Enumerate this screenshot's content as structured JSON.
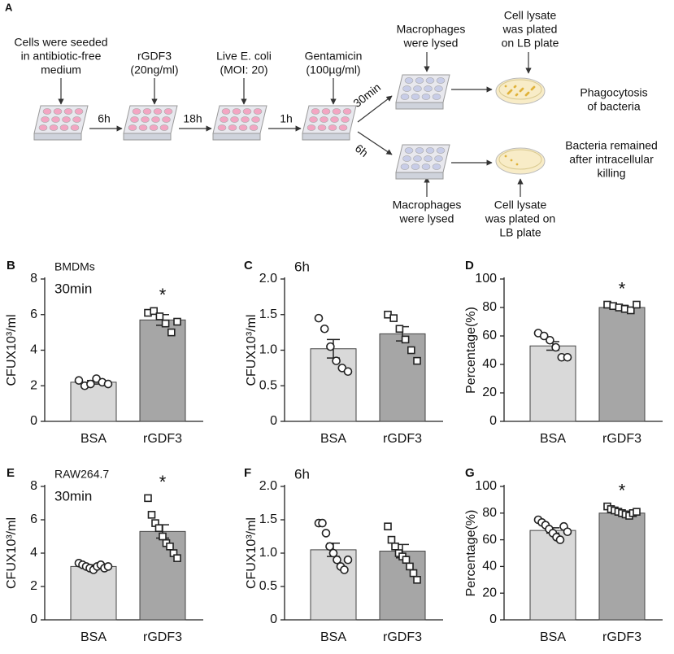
{
  "figure_label": "A",
  "diagram": {
    "steps": [
      {
        "lines": [
          "Cells  were seeded",
          "in antibiotic-free",
          "medium"
        ]
      },
      {
        "lines": [
          "rGDF3",
          "(20ng/ml)"
        ]
      },
      {
        "lines": [
          "Live E. coli",
          "(MOI: 20)"
        ]
      },
      {
        "lines": [
          "Gentamicin",
          "(100µg/ml)"
        ]
      },
      {
        "lines": [
          "Macrophages",
          "were lysed"
        ]
      },
      {
        "lines": [
          "Cell lysate",
          "was plated",
          "on LB plate"
        ]
      },
      {
        "lines": [
          "Phagocytosis",
          "of bacteria"
        ]
      },
      {
        "lines": [
          "Bacteria remained",
          "after intracellular",
          "killing"
        ]
      },
      {
        "lines": [
          "Macrophages",
          "were lysed"
        ]
      },
      {
        "lines": [
          "Cell lysate",
          "was plated on",
          "LB plate"
        ]
      }
    ],
    "intervals": [
      "6h",
      "18h",
      "1h",
      "30min",
      "6h"
    ]
  },
  "chart_data": [
    {
      "type": "bar",
      "panel": "B",
      "annotations": [
        "BMDMs",
        "30min"
      ],
      "significance": "*",
      "ylabel": "CFUX10³/ml",
      "categories": [
        "BSA",
        "rGDF3"
      ],
      "values": [
        2.2,
        5.7
      ],
      "errors": [
        0.1,
        0.3
      ],
      "colors": [
        "#d9d9d9",
        "#a6a6a6"
      ],
      "markers": [
        "circle",
        "square"
      ],
      "points": [
        [
          2.3,
          2.0,
          2.1,
          2.4,
          2.2,
          2.1
        ],
        [
          6.1,
          6.2,
          5.9,
          5.5,
          5.0,
          5.6
        ]
      ],
      "ylim": [
        0,
        8
      ],
      "yticks": [
        0,
        2,
        4,
        6,
        8
      ]
    },
    {
      "type": "bar",
      "panel": "C",
      "annotations": [
        "6h"
      ],
      "ylabel": "CFUX10³/ml",
      "categories": [
        "BSA",
        "rGDF3"
      ],
      "values": [
        1.02,
        1.23
      ],
      "errors": [
        0.13,
        0.1
      ],
      "colors": [
        "#d9d9d9",
        "#a6a6a6"
      ],
      "markers": [
        "circle",
        "square"
      ],
      "points": [
        [
          1.45,
          1.3,
          1.05,
          0.85,
          0.75,
          0.7
        ],
        [
          1.5,
          1.45,
          1.3,
          1.15,
          1.0,
          0.85
        ]
      ],
      "ylim": [
        0,
        2.0
      ],
      "yticks": [
        0,
        0.5,
        {
          "value": 1.0,
          "label": "1.0"
        },
        1.5,
        {
          "value": 2.0,
          "label": "2.0"
        }
      ]
    },
    {
      "type": "bar",
      "panel": "D",
      "annotations": [],
      "significance": "*",
      "ylabel": "Percentage(%)",
      "categories": [
        "BSA",
        "rGDF3"
      ],
      "values": [
        53,
        80
      ],
      "errors": [
        3,
        1.5
      ],
      "colors": [
        "#d9d9d9",
        "#a6a6a6"
      ],
      "markers": [
        "circle",
        "square"
      ],
      "points": [
        [
          62,
          60,
          57,
          52,
          45,
          45
        ],
        [
          82,
          81,
          80,
          79,
          78,
          82
        ]
      ],
      "ylim": [
        0,
        100
      ],
      "yticks": [
        0,
        20,
        40,
        60,
        80,
        100
      ]
    },
    {
      "type": "bar",
      "panel": "E",
      "annotations": [
        "RAW264.7",
        "30min"
      ],
      "significance": "*",
      "ylabel": "CFUX10³/ml",
      "categories": [
        "BSA",
        "rGDF3"
      ],
      "values": [
        3.2,
        5.3
      ],
      "errors": [
        0.1,
        0.4
      ],
      "colors": [
        "#d9d9d9",
        "#a6a6a6"
      ],
      "markers": [
        "circle",
        "square"
      ],
      "points": [
        [
          3.4,
          3.3,
          3.2,
          3.1,
          3.0,
          3.2,
          3.3,
          3.1,
          3.2
        ],
        [
          7.3,
          6.3,
          5.8,
          5.5,
          5.0,
          4.6,
          4.4,
          4.0,
          3.7
        ]
      ],
      "ylim": [
        0,
        8
      ],
      "yticks": [
        0,
        2,
        4,
        6,
        8
      ]
    },
    {
      "type": "bar",
      "panel": "F",
      "annotations": [
        "6h"
      ],
      "ylabel": "CFUX10³/ml",
      "categories": [
        "BSA",
        "rGDF3"
      ],
      "values": [
        1.05,
        1.03
      ],
      "errors": [
        0.1,
        0.1
      ],
      "colors": [
        "#d9d9d9",
        "#a6a6a6"
      ],
      "markers": [
        "circle",
        "square"
      ],
      "points": [
        [
          1.45,
          1.45,
          1.3,
          1.1,
          1.0,
          0.9,
          0.8,
          0.75,
          0.9
        ],
        [
          1.4,
          1.2,
          1.1,
          1.0,
          0.95,
          0.9,
          0.8,
          0.7,
          0.6
        ]
      ],
      "ylim": [
        0,
        2.0
      ],
      "yticks": [
        0,
        0.5,
        {
          "value": 1.0,
          "label": "1.0"
        },
        1.5,
        {
          "value": 2.0,
          "label": "2.0"
        }
      ]
    },
    {
      "type": "bar",
      "panel": "G",
      "annotations": [],
      "significance": "*",
      "ylabel": "Percentage(%)",
      "categories": [
        "BSA",
        "rGDF3"
      ],
      "values": [
        67,
        80
      ],
      "errors": [
        2,
        1.5
      ],
      "colors": [
        "#d9d9d9",
        "#a6a6a6"
      ],
      "markers": [
        "circle",
        "square"
      ],
      "points": [
        [
          75,
          73,
          71,
          68,
          65,
          62,
          60,
          70,
          66
        ],
        [
          85,
          83,
          82,
          81,
          80,
          79,
          78,
          80,
          81
        ]
      ],
      "ylim": [
        0,
        100
      ],
      "yticks": [
        0,
        20,
        40,
        60,
        80,
        100
      ]
    }
  ]
}
